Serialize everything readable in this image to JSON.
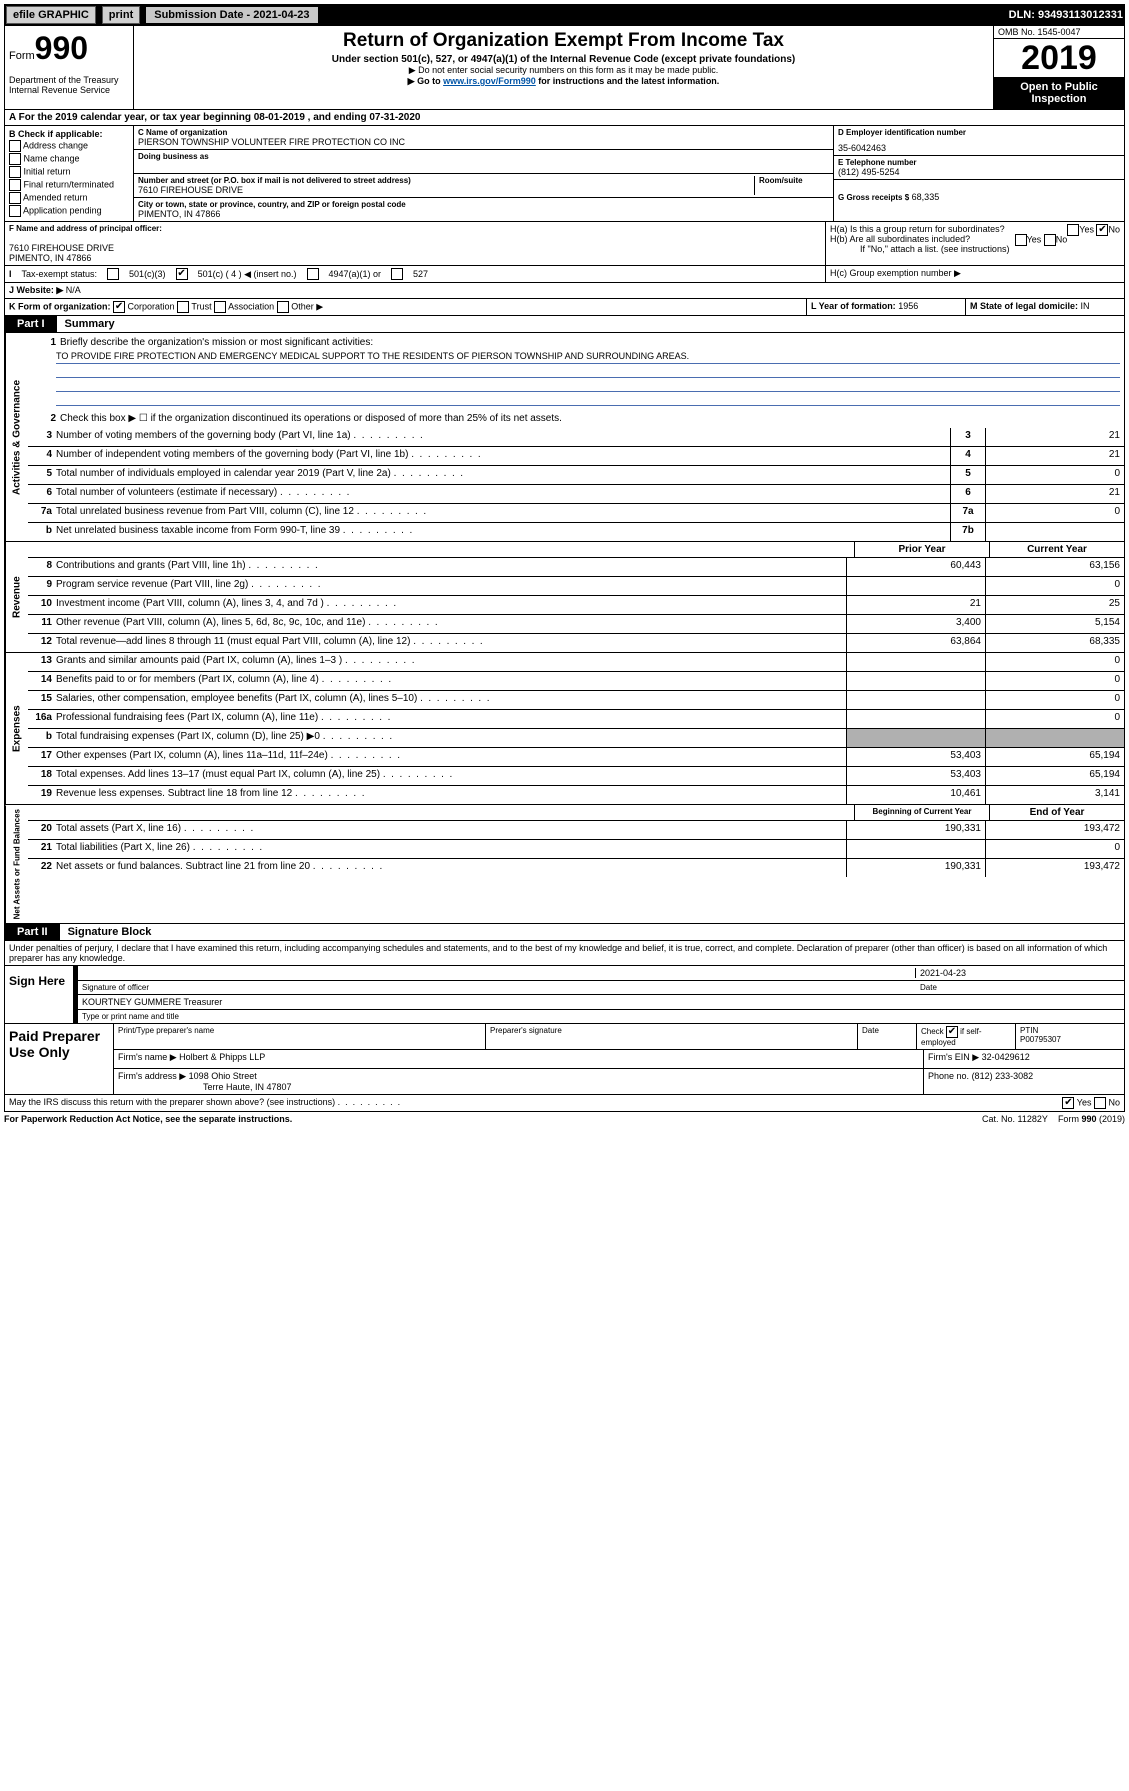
{
  "topbar": {
    "efile": "efile GRAPHIC",
    "print": "print",
    "submission": "Submission Date - 2021-04-23",
    "dln": "DLN: 93493113012331"
  },
  "header": {
    "form": "Form",
    "num": "990",
    "title": "Return of Organization Exempt From Income Tax",
    "sub1": "Under section 501(c), 527, or 4947(a)(1) of the Internal Revenue Code (except private foundations)",
    "sub2": "▶ Do not enter social security numbers on this form as it may be made public.",
    "sub3_pre": "▶ Go to ",
    "sub3_link": "www.irs.gov/Form990",
    "sub3_post": " for instructions and the latest information.",
    "dept": "Department of the Treasury\nInternal Revenue Service",
    "omb": "OMB No. 1545-0047",
    "year": "2019",
    "open": "Open to Public Inspection"
  },
  "period": "For the 2019 calendar year, or tax year beginning 08-01-2019   , and ending 07-31-2020",
  "boxB": {
    "label": "B Check if applicable:",
    "items": [
      "Address change",
      "Name change",
      "Initial return",
      "Final return/terminated",
      "Amended return",
      "Application pending"
    ]
  },
  "boxC": {
    "label": "C Name of organization",
    "name": "PIERSON TOWNSHIP VOLUNTEER FIRE PROTECTION CO INC",
    "dba_label": "Doing business as",
    "addr_label": "Number and street (or P.O. box if mail is not delivered to street address)",
    "room_label": "Room/suite",
    "addr": "7610 FIREHOUSE DRIVE",
    "city_label": "City or town, state or province, country, and ZIP or foreign postal code",
    "city": "PIMENTO, IN  47866"
  },
  "boxD": {
    "label": "D Employer identification number",
    "ein": "35-6042463"
  },
  "boxE": {
    "label": "E Telephone number",
    "phone": "(812) 495-5254"
  },
  "boxG": {
    "label": "G Gross receipts $",
    "amount": "68,335"
  },
  "boxF": {
    "label": "F Name and address of principal officer:",
    "addr1": "7610 FIREHOUSE DRIVE",
    "addr2": "PIMENTO, IN  47866"
  },
  "boxH": {
    "a": "H(a)  Is this a group return for subordinates?",
    "b": "H(b)  Are all subordinates included?",
    "bnote": "If \"No,\" attach a list. (see instructions)",
    "c": "H(c)  Group exemption number ▶",
    "yes": "Yes",
    "no": "No"
  },
  "boxI": {
    "label": "Tax-exempt status:",
    "o1": "501(c)(3)",
    "o2": "501(c) ( 4 ) ◀ (insert no.)",
    "o3": "4947(a)(1) or",
    "o4": "527"
  },
  "boxJ": {
    "label": "Website: ▶",
    "val": "N/A"
  },
  "boxK": {
    "label": "K Form of organization:",
    "o1": "Corporation",
    "o2": "Trust",
    "o3": "Association",
    "o4": "Other ▶"
  },
  "boxL": {
    "label": "L Year of formation:",
    "val": "1956"
  },
  "boxM": {
    "label": "M State of legal domicile:",
    "val": "IN"
  },
  "partI": {
    "tab": "Part I",
    "title": "Summary"
  },
  "gov": {
    "l1": "Briefly describe the organization's mission or most significant activities:",
    "mission": "TO PROVIDE FIRE PROTECTION AND EMERGENCY MEDICAL SUPPORT TO THE RESIDENTS OF PIERSON TOWNSHIP AND SURROUNDING AREAS.",
    "l2": "Check this box ▶ ☐  if the organization discontinued its operations or disposed of more than 25% of its net assets.",
    "rows": [
      {
        "n": "3",
        "t": "Number of voting members of the governing body (Part VI, line 1a)",
        "box": "3",
        "v": "21"
      },
      {
        "n": "4",
        "t": "Number of independent voting members of the governing body (Part VI, line 1b)",
        "box": "4",
        "v": "21"
      },
      {
        "n": "5",
        "t": "Total number of individuals employed in calendar year 2019 (Part V, line 2a)",
        "box": "5",
        "v": "0"
      },
      {
        "n": "6",
        "t": "Total number of volunteers (estimate if necessary)",
        "box": "6",
        "v": "21"
      },
      {
        "n": "7a",
        "t": "Total unrelated business revenue from Part VIII, column (C), line 12",
        "box": "7a",
        "v": "0"
      },
      {
        "n": "b",
        "t": "Net unrelated business taxable income from Form 990-T, line 39",
        "box": "7b",
        "v": ""
      }
    ]
  },
  "rev": {
    "hdr_prior": "Prior Year",
    "hdr_curr": "Current Year",
    "rows": [
      {
        "n": "8",
        "t": "Contributions and grants (Part VIII, line 1h)",
        "p": "60,443",
        "c": "63,156"
      },
      {
        "n": "9",
        "t": "Program service revenue (Part VIII, line 2g)",
        "p": "",
        "c": "0"
      },
      {
        "n": "10",
        "t": "Investment income (Part VIII, column (A), lines 3, 4, and 7d )",
        "p": "21",
        "c": "25"
      },
      {
        "n": "11",
        "t": "Other revenue (Part VIII, column (A), lines 5, 6d, 8c, 9c, 10c, and 11e)",
        "p": "3,400",
        "c": "5,154"
      },
      {
        "n": "12",
        "t": "Total revenue—add lines 8 through 11 (must equal Part VIII, column (A), line 12)",
        "p": "63,864",
        "c": "68,335"
      }
    ]
  },
  "exp": {
    "rows": [
      {
        "n": "13",
        "t": "Grants and similar amounts paid (Part IX, column (A), lines 1–3 )",
        "p": "",
        "c": "0"
      },
      {
        "n": "14",
        "t": "Benefits paid to or for members (Part IX, column (A), line 4)",
        "p": "",
        "c": "0"
      },
      {
        "n": "15",
        "t": "Salaries, other compensation, employee benefits (Part IX, column (A), lines 5–10)",
        "p": "",
        "c": "0"
      },
      {
        "n": "16a",
        "t": "Professional fundraising fees (Part IX, column (A), line 11e)",
        "p": "",
        "c": "0"
      },
      {
        "n": "b",
        "t": "Total fundraising expenses (Part IX, column (D), line 25) ▶0",
        "p": "grey",
        "c": "grey"
      },
      {
        "n": "17",
        "t": "Other expenses (Part IX, column (A), lines 11a–11d, 11f–24e)",
        "p": "53,403",
        "c": "65,194"
      },
      {
        "n": "18",
        "t": "Total expenses. Add lines 13–17 (must equal Part IX, column (A), line 25)",
        "p": "53,403",
        "c": "65,194"
      },
      {
        "n": "19",
        "t": "Revenue less expenses. Subtract line 18 from line 12",
        "p": "10,461",
        "c": "3,141"
      }
    ]
  },
  "net": {
    "hdr_beg": "Beginning of Current Year",
    "hdr_end": "End of Year",
    "rows": [
      {
        "n": "20",
        "t": "Total assets (Part X, line 16)",
        "p": "190,331",
        "c": "193,472"
      },
      {
        "n": "21",
        "t": "Total liabilities (Part X, line 26)",
        "p": "",
        "c": "0"
      },
      {
        "n": "22",
        "t": "Net assets or fund balances. Subtract line 21 from line 20",
        "p": "190,331",
        "c": "193,472"
      }
    ]
  },
  "side": {
    "gov": "Activities & Governance",
    "rev": "Revenue",
    "exp": "Expenses",
    "net": "Net Assets or Fund Balances"
  },
  "partII": {
    "tab": "Part II",
    "title": "Signature Block"
  },
  "perjury": "Under penalties of perjury, I declare that I have examined this return, including accompanying schedules and statements, and to the best of my knowledge and belief, it is true, correct, and complete. Declaration of preparer (other than officer) is based on all information of which preparer has any knowledge.",
  "sign": {
    "label": "Sign Here",
    "date": "2021-04-23",
    "sig_lbl": "Signature of officer",
    "date_lbl": "Date",
    "name": "KOURTNEY GUMMERE Treasurer",
    "name_lbl": "Type or print name and title"
  },
  "prep": {
    "label": "Paid Preparer Use Only",
    "h1": "Print/Type preparer's name",
    "h2": "Preparer's signature",
    "h3": "Date",
    "h4_pre": "Check",
    "h4_post": "if self-employed",
    "h5": "PTIN",
    "ptin": "P00795307",
    "firm_lbl": "Firm's name    ▶",
    "firm": "Holbert & Phipps LLP",
    "ein_lbl": "Firm's EIN ▶",
    "ein": "32-0429612",
    "addr_lbl": "Firm's address ▶",
    "addr1": "1098 Ohio Street",
    "addr2": "Terre Haute, IN  47807",
    "phone_lbl": "Phone no.",
    "phone": "(812) 233-3082"
  },
  "discuss": {
    "text": "May the IRS discuss this return with the preparer shown above? (see instructions)",
    "yes": "Yes",
    "no": "No"
  },
  "footer": {
    "pra": "For Paperwork Reduction Act Notice, see the separate instructions.",
    "cat": "Cat. No. 11282Y",
    "form": "Form 990 (2019)"
  }
}
